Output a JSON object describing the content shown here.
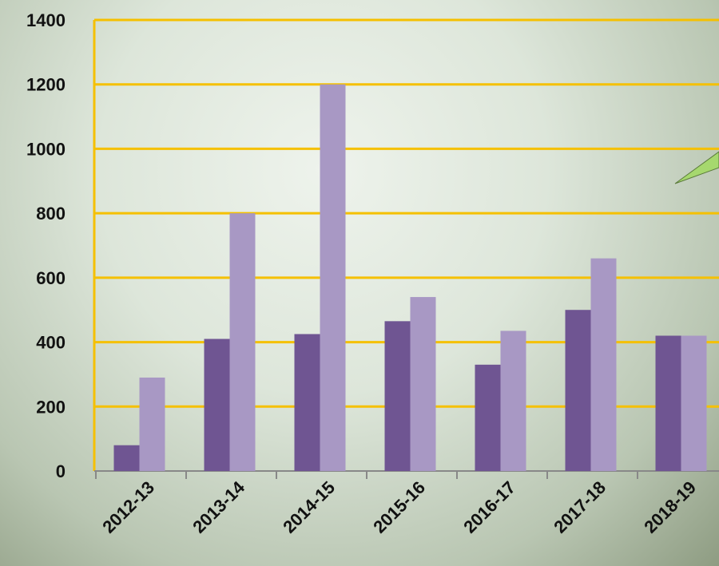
{
  "chart_data": {
    "type": "bar",
    "categories": [
      "2012-13",
      "2013-14",
      "2014-15",
      "2015-16",
      "2016-17",
      "2017-18",
      "2018-19"
    ],
    "series": [
      {
        "color": "#6f5592",
        "values": [
          80,
          410,
          425,
          465,
          330,
          500,
          420
        ]
      },
      {
        "color": "#a898c4",
        "values": [
          290,
          800,
          1200,
          540,
          435,
          660,
          420
        ]
      }
    ],
    "ylim": [
      0,
      1400
    ],
    "yticks": [
      0,
      200,
      400,
      600,
      800,
      1000,
      1200,
      1400
    ],
    "grid": true
  }
}
